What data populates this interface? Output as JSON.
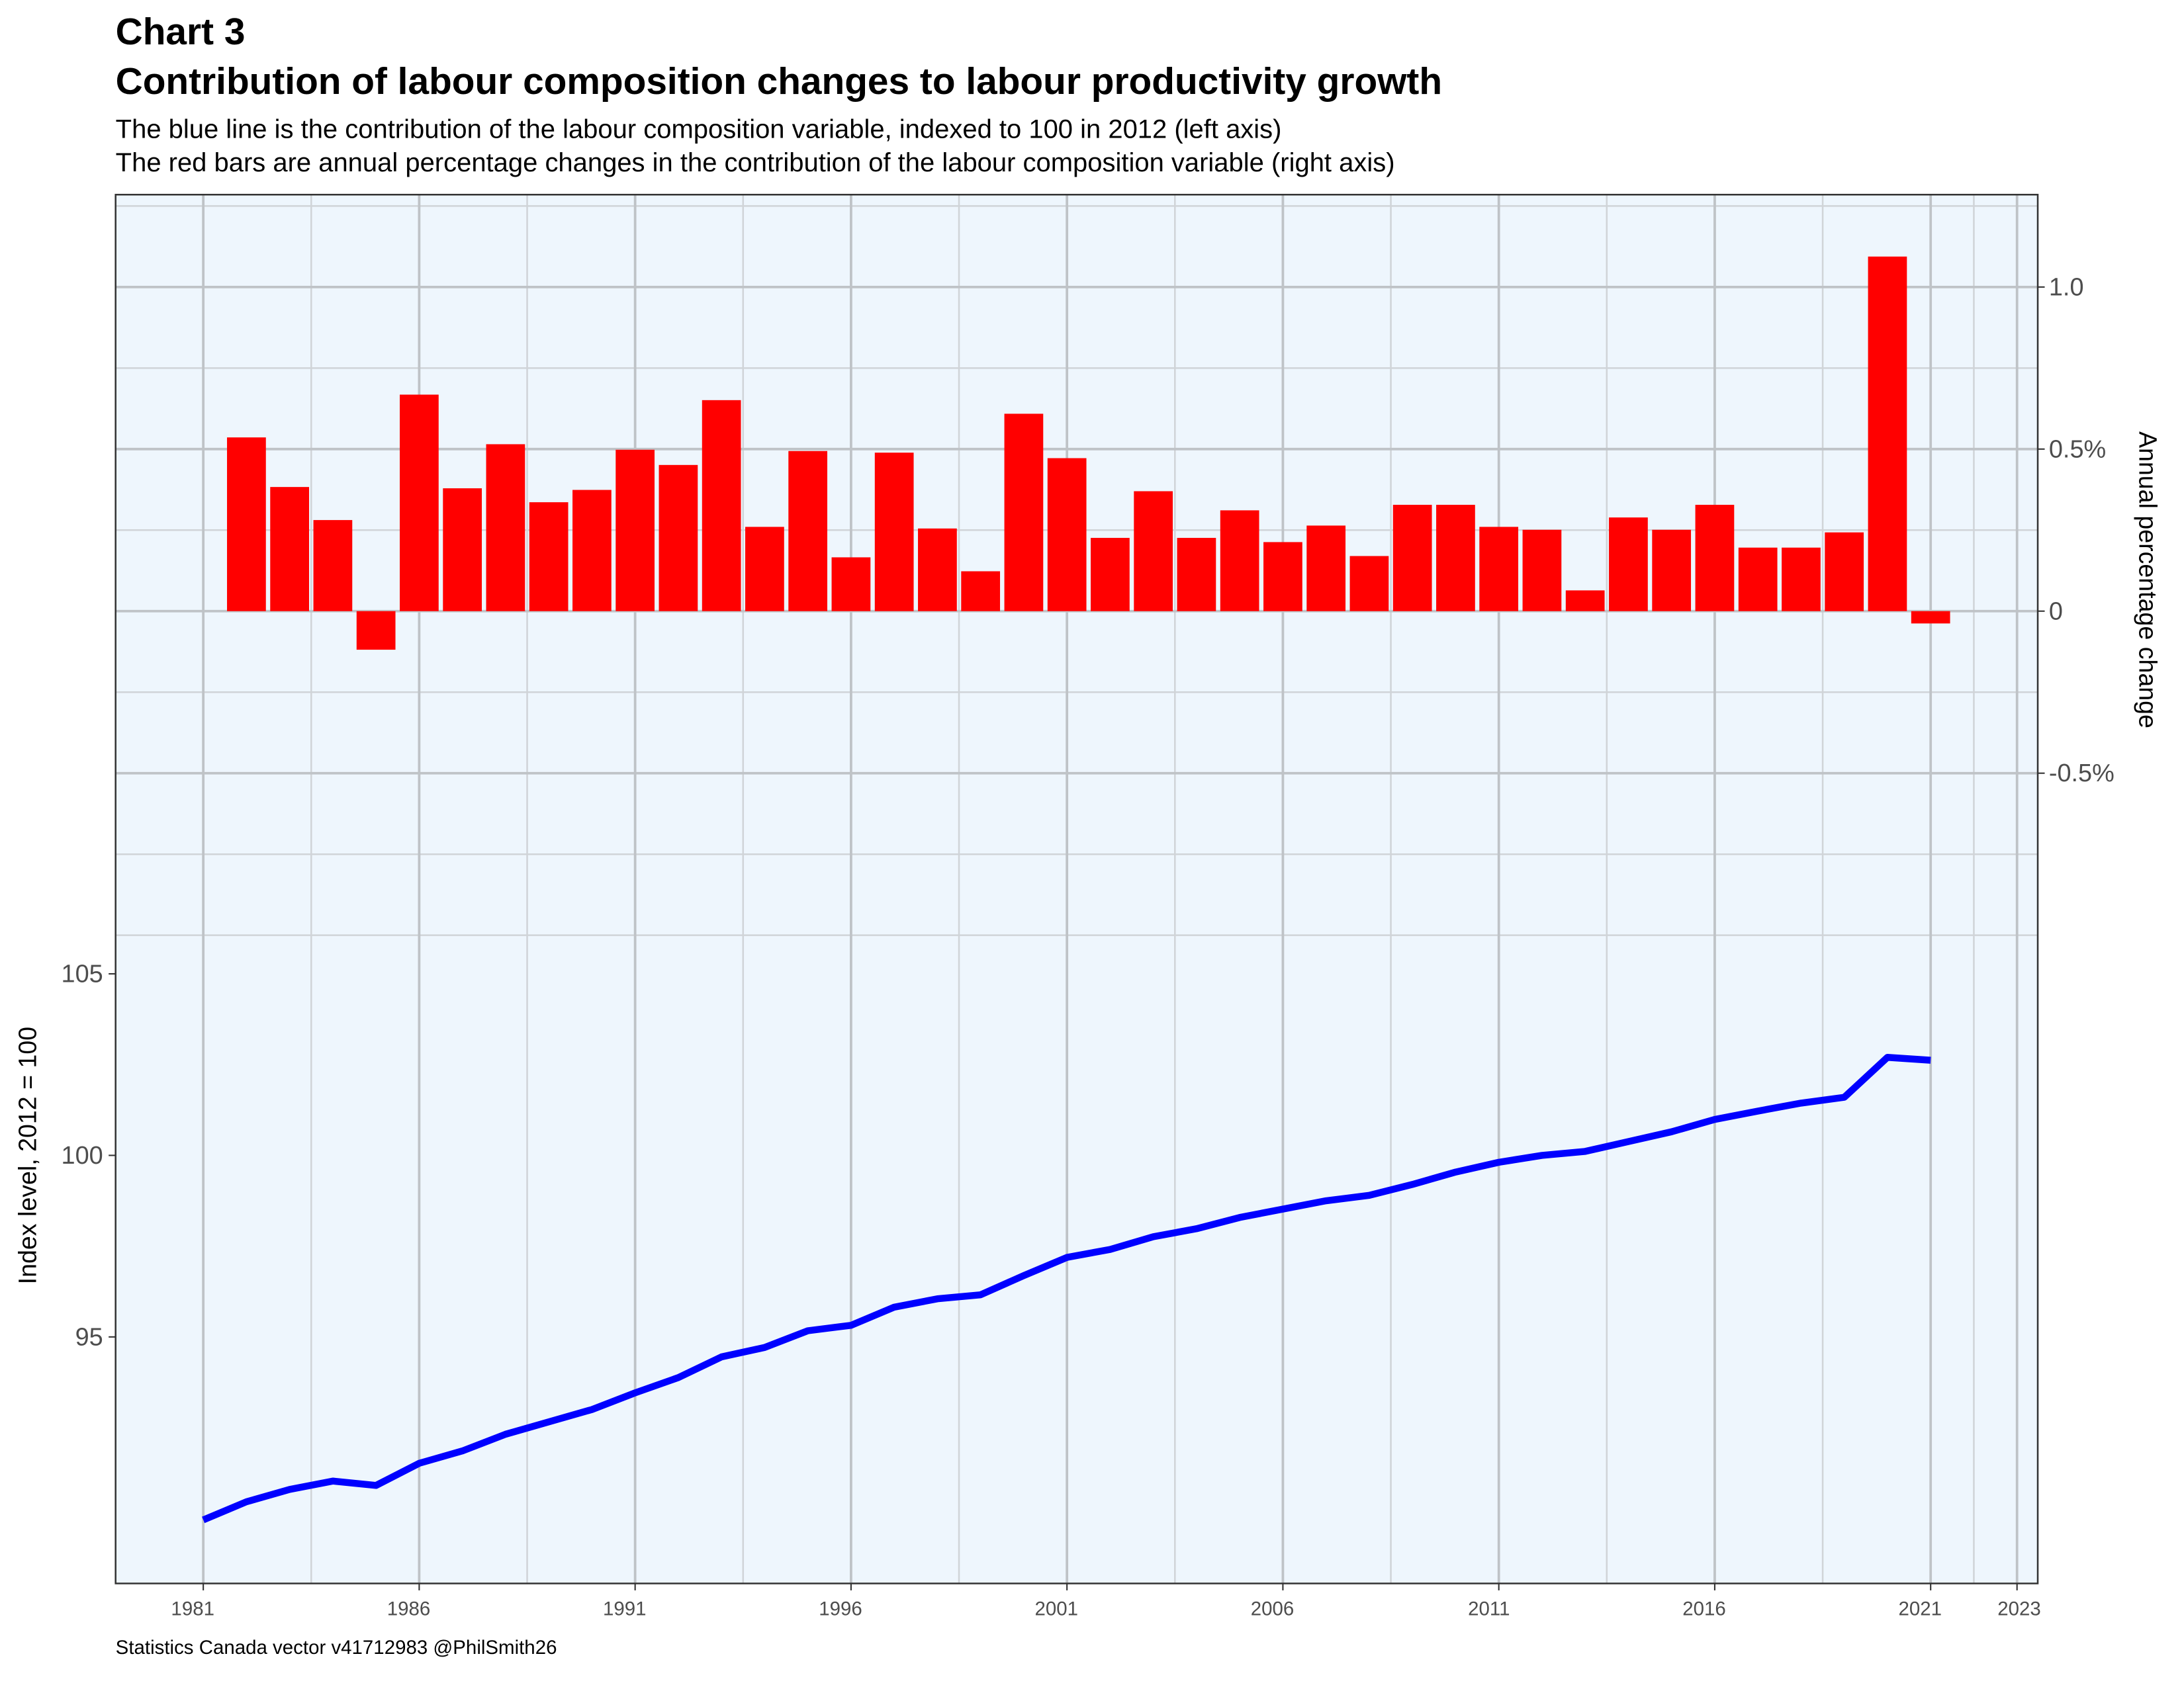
{
  "chart_data": {
    "type": "combo",
    "title": "Chart 3",
    "title2": "Contribution of labour composition changes to labour productivity growth",
    "subtitle": "The blue line is the contribution of the labour composition variable, indexed to 100 in 2012 (left axis)",
    "subtitle2": "The red bars are annual percentage changes in the contribution of the labour composition variable (right axis)",
    "caption": "Statistics Canada vector v41712983 @PhilSmith26",
    "ylabel": "Index level, 2012 = 100",
    "y2label": "Annual percentage change",
    "background": "#eef6fd",
    "grid": true,
    "xlim": [
      1978.97,
      2023.48
    ],
    "xticks": [
      1981,
      1986,
      1991,
      1996,
      2001,
      2006,
      2011,
      2016,
      2021,
      2023
    ],
    "ylim": [
      88.21,
      126.46
    ],
    "yticks": [
      95,
      100,
      105
    ],
    "y2lim": [
      -3.0,
      1.285
    ],
    "y2ticks": [
      {
        "value": 1.0,
        "label": "1.0"
      },
      {
        "value": 0.5,
        "label": "0.5%"
      },
      0,
      {
        "value": -0.5,
        "label": "-0.5%"
      }
    ],
    "y2_minor_grid": [
      1.25,
      0.75,
      0.25,
      -0.25,
      -0.75,
      -1.0
    ],
    "series": [
      {
        "type": "bar",
        "color": "#ff0000",
        "axis": "y2",
        "x": [
          1982,
          1983,
          1984,
          1985,
          1986,
          1987,
          1988,
          1989,
          1990,
          1991,
          1992,
          1993,
          1994,
          1995,
          1996,
          1997,
          1998,
          1999,
          2000,
          2001,
          2002,
          2003,
          2004,
          2005,
          2006,
          2007,
          2008,
          2009,
          2010,
          2011,
          2012,
          2013,
          2014,
          2015,
          2016,
          2017,
          2018,
          2019,
          2020,
          2021
        ],
        "values": [
          0.536,
          0.383,
          0.281,
          -0.119,
          0.668,
          0.379,
          0.515,
          0.336,
          0.374,
          0.498,
          0.451,
          0.651,
          0.26,
          0.494,
          0.166,
          0.489,
          0.255,
          0.123,
          0.609,
          0.472,
          0.226,
          0.37,
          0.226,
          0.311,
          0.213,
          0.264,
          0.17,
          0.328,
          0.328,
          0.26,
          0.251,
          0.064,
          0.289,
          0.251,
          0.328,
          0.196,
          0.196,
          0.243,
          1.094,
          -0.038
        ]
      },
      {
        "type": "line",
        "color": "#0000ff",
        "x": [
          1981,
          1982,
          1983,
          1984,
          1985,
          1986,
          1987,
          1988,
          1989,
          1990,
          1991,
          1992,
          1993,
          1994,
          1995,
          1996,
          1997,
          1998,
          1999,
          2000,
          2001,
          2002,
          2003,
          2004,
          2005,
          2006,
          2007,
          2008,
          2009,
          2010,
          2011,
          2012,
          2013,
          2014,
          2015,
          2016,
          2017,
          2018,
          2019,
          2020,
          2021
        ],
        "values": [
          89.96,
          90.46,
          90.8,
          91.03,
          90.91,
          91.52,
          91.86,
          92.32,
          92.66,
          93.0,
          93.46,
          93.88,
          94.45,
          94.71,
          95.17,
          95.32,
          95.82,
          96.05,
          96.16,
          96.69,
          97.19,
          97.41,
          97.76,
          97.98,
          98.29,
          98.52,
          98.75,
          98.9,
          99.2,
          99.54,
          99.81,
          100.0,
          100.11,
          100.38,
          100.65,
          100.99,
          101.22,
          101.44,
          101.6,
          102.7,
          102.62
        ]
      }
    ]
  }
}
